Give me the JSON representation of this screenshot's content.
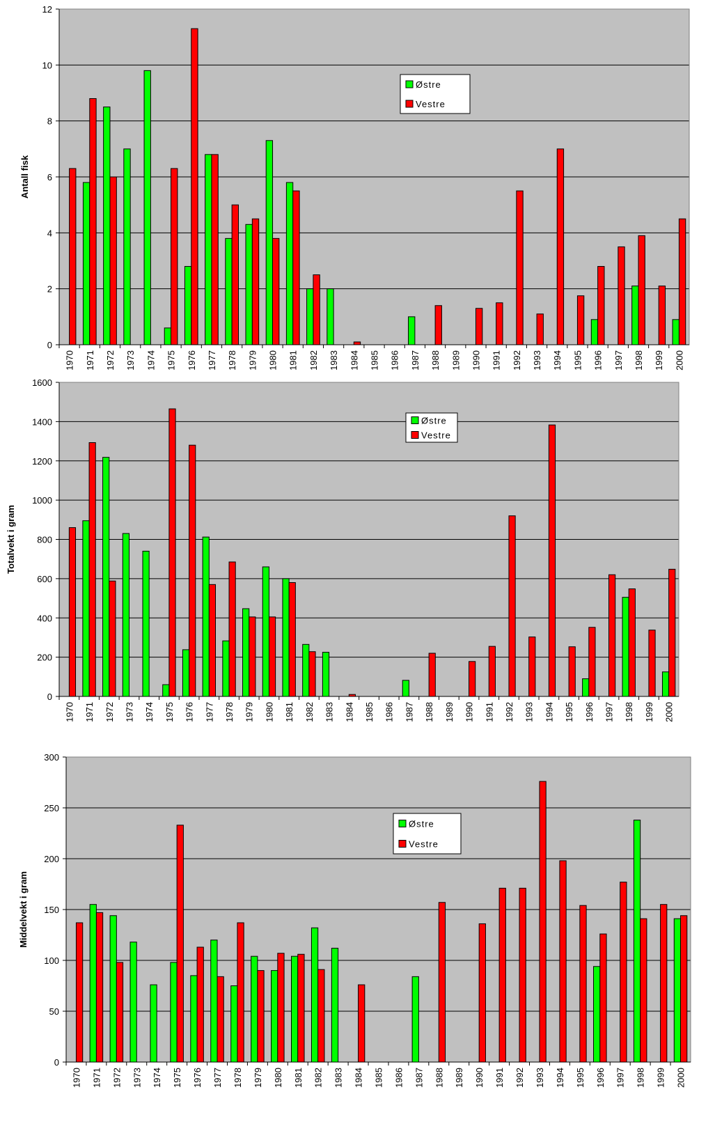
{
  "chart_data": [
    {
      "type": "bar",
      "y_label": "Antall fisk",
      "categories": [
        "1970",
        "1971",
        "1972",
        "1973",
        "1974",
        "1975",
        "1976",
        "1977",
        "1978",
        "1979",
        "1980",
        "1981",
        "1982",
        "1983",
        "1984",
        "1985",
        "1986",
        "1987",
        "1988",
        "1989",
        "1990",
        "1991",
        "1992",
        "1993",
        "1994",
        "1995",
        "1996",
        "1997",
        "1998",
        "1999",
        "2000"
      ],
      "series": [
        {
          "name": "Østre",
          "color": "#00ff00",
          "values": [
            0,
            5.8,
            8.5,
            7,
            9.8,
            0.6,
            2.8,
            6.8,
            3.8,
            4.3,
            7.3,
            5.8,
            2,
            2,
            0,
            0,
            0,
            1,
            0,
            0,
            0,
            0,
            0,
            0,
            0,
            0,
            0.9,
            0,
            2.1,
            0,
            0.9
          ]
        },
        {
          "name": "Vestre",
          "color": "#ff0000",
          "values": [
            6.3,
            8.8,
            6,
            0,
            0,
            6.3,
            11.3,
            6.8,
            5,
            4.5,
            3.8,
            5.5,
            2.5,
            0,
            0.1,
            0,
            0,
            0,
            1.4,
            0,
            1.3,
            1.5,
            5.5,
            1.1,
            7,
            1.75,
            2.8,
            3.5,
            3.9,
            2.1,
            4.5
          ]
        }
      ],
      "ylim": [
        0,
        12
      ],
      "yticks": [
        0,
        2,
        4,
        6,
        8,
        10,
        12
      ],
      "grid": true
    },
    {
      "type": "bar",
      "y_label": "Totalvekt i gram",
      "categories": [
        "1970",
        "1971",
        "1972",
        "1973",
        "1974",
        "1975",
        "1976",
        "1977",
        "1978",
        "1979",
        "1980",
        "1981",
        "1982",
        "1983",
        "1984",
        "1985",
        "1986",
        "1987",
        "1988",
        "1989",
        "1990",
        "1991",
        "1992",
        "1993",
        "1994",
        "1995",
        "1996",
        "1997",
        "1998",
        "1999",
        "2000"
      ],
      "series": [
        {
          "name": "Østre",
          "color": "#00ff00",
          "values": [
            0,
            895,
            1218,
            830,
            740,
            60,
            238,
            812,
            283,
            447,
            660,
            600,
            265,
            225,
            0,
            0,
            0,
            82,
            0,
            0,
            0,
            0,
            0,
            0,
            0,
            0,
            90,
            0,
            505,
            0,
            125
          ]
        },
        {
          "name": "Vestre",
          "color": "#ff0000",
          "values": [
            860,
            1293,
            588,
            0,
            0,
            1465,
            1280,
            570,
            685,
            405,
            405,
            580,
            228,
            0,
            10,
            0,
            0,
            0,
            220,
            0,
            178,
            255,
            920,
            303,
            1383,
            253,
            352,
            620,
            548,
            338,
            648
          ]
        }
      ],
      "ylim": [
        0,
        1600
      ],
      "yticks": [
        0,
        200,
        400,
        600,
        800,
        1000,
        1200,
        1400,
        1600
      ],
      "grid": true
    },
    {
      "type": "bar",
      "y_label": "Middelvekt i gram",
      "categories": [
        "1970",
        "1971",
        "1972",
        "1973",
        "1974",
        "1975",
        "1976",
        "1977",
        "1978",
        "1979",
        "1980",
        "1981",
        "1982",
        "1983",
        "1984",
        "1985",
        "1986",
        "1987",
        "1988",
        "1989",
        "1990",
        "1991",
        "1992",
        "1993",
        "1994",
        "1995",
        "1996",
        "1997",
        "1998",
        "1999",
        "2000"
      ],
      "series": [
        {
          "name": "Østre",
          "color": "#00ff00",
          "values": [
            0,
            155,
            144,
            118,
            76,
            98,
            85,
            120,
            75,
            104,
            90,
            104,
            132,
            112,
            0,
            0,
            0,
            84,
            0,
            0,
            0,
            0,
            0,
            0,
            0,
            0,
            94,
            0,
            238,
            0,
            141
          ]
        },
        {
          "name": "Vestre",
          "color": "#ff0000",
          "values": [
            137,
            147,
            98,
            0,
            0,
            233,
            113,
            84,
            137,
            90,
            107,
            106,
            91,
            0,
            76,
            0,
            0,
            0,
            157,
            0,
            136,
            171,
            171,
            276,
            198,
            154,
            126,
            177,
            141,
            155,
            144
          ]
        }
      ],
      "ylim": [
        0,
        300
      ],
      "yticks": [
        0,
        50,
        100,
        150,
        200,
        250,
        300
      ],
      "grid": true
    }
  ]
}
